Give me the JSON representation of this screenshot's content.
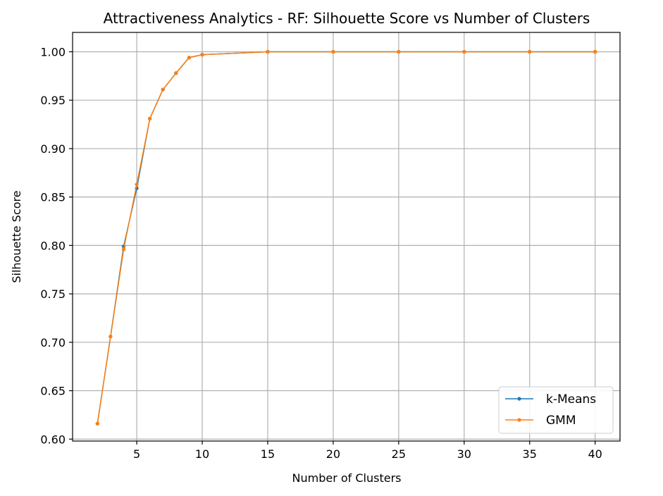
{
  "chart_data": {
    "type": "line",
    "title": "Attractiveness Analytics - RF: Silhouette Score vs Number of Clusters",
    "xlabel": "Number of Clusters",
    "ylabel": "Silhouette Score",
    "xlim": [
      0.1,
      41.9
    ],
    "ylim": [
      0.598,
      1.02
    ],
    "xticks": [
      5,
      10,
      15,
      20,
      25,
      30,
      35,
      40
    ],
    "yticks": [
      0.6,
      0.65,
      0.7,
      0.75,
      0.8,
      0.85,
      0.9,
      0.95,
      1.0
    ],
    "ytick_labels": [
      "0.60",
      "0.65",
      "0.70",
      "0.75",
      "0.80",
      "0.85",
      "0.90",
      "0.95",
      "1.00"
    ],
    "grid": true,
    "legend_position": "bottom-right",
    "x": [
      2,
      3,
      4,
      5,
      6,
      7,
      8,
      9,
      10,
      15,
      20,
      25,
      30,
      35,
      40
    ],
    "series": [
      {
        "name": "k-Means",
        "color": "#1f77b4",
        "values": [
          0.616,
          0.706,
          0.799,
          0.859,
          0.931,
          0.961,
          0.978,
          0.994,
          0.997,
          1.0,
          1.0,
          1.0,
          1.0,
          1.0,
          1.0
        ]
      },
      {
        "name": "GMM",
        "color": "#ff7f0e",
        "values": [
          0.616,
          0.706,
          0.796,
          0.863,
          0.931,
          0.961,
          0.978,
          0.994,
          0.997,
          1.0,
          1.0,
          1.0,
          1.0,
          1.0,
          1.0
        ]
      }
    ]
  }
}
